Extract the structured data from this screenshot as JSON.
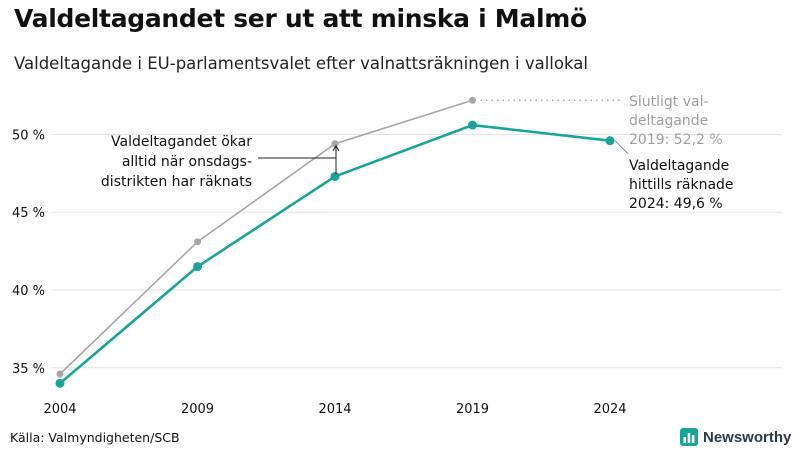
{
  "header": {
    "title": "Valdeltagandet ser ut att minska i Malmö",
    "subtitle": "Valdeltagande i EU-parlamentsvalet efter valnattsräkningen i vallokal"
  },
  "footer": {
    "source": "Källa: Valmyndigheten/SCB",
    "brand": "Newsworthy"
  },
  "colors": {
    "counted": "#1aa39a",
    "final": "#a6a6a6",
    "grid": "#e3e3e3"
  },
  "annotations": {
    "note_lines": [
      "Valdeltagandet ökar",
      "alltid när onsdags-",
      "distrikten har räknats"
    ],
    "final_label_lines": [
      "Slutligt val-",
      "deltagande",
      "2019: 52,2 %"
    ],
    "counted_label_lines": [
      "Valdeltagande",
      "hittills räknade",
      "2024: 49,6 %"
    ]
  },
  "chart_data": {
    "type": "line",
    "title": "Valdeltagandet ser ut att minska i Malmö",
    "subtitle": "Valdeltagande i EU-parlamentsvalet efter valnattsräkningen i vallokal",
    "xlabel": "",
    "ylabel": "",
    "x": [
      "2004",
      "2009",
      "2014",
      "2019",
      "2024"
    ],
    "y_ticks": [
      35,
      40,
      45,
      50
    ],
    "y_tick_labels": [
      "35 %",
      "40 %",
      "45 %",
      "50 %"
    ],
    "ylim": [
      33.7,
      53.5
    ],
    "grid": true,
    "legend": "none",
    "series": [
      {
        "name": "Slutligt valdeltagande",
        "color": "#a6a6a6",
        "values": [
          34.6,
          43.1,
          49.4,
          52.2,
          null
        ]
      },
      {
        "name": "Valdeltagande hittills räknade",
        "color": "#1aa39a",
        "values": [
          34.0,
          41.5,
          47.3,
          50.6,
          49.6
        ]
      }
    ]
  }
}
